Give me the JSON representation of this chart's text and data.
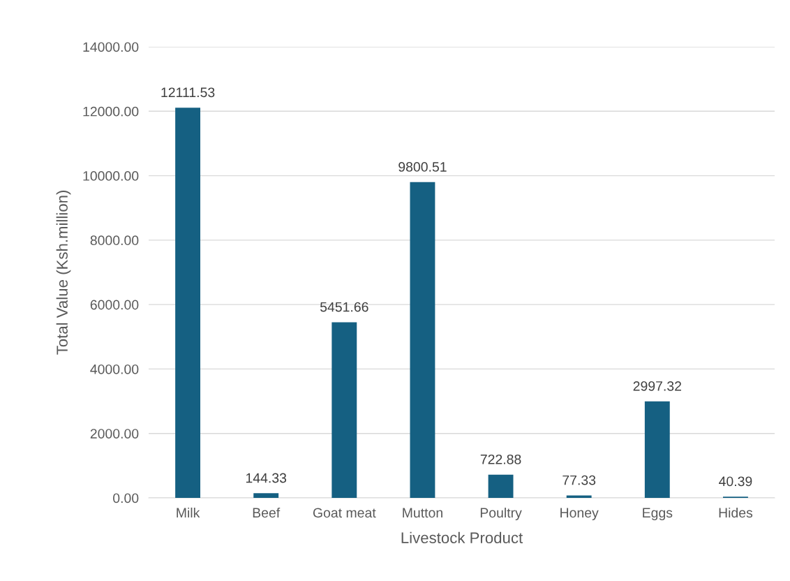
{
  "chart_data": {
    "type": "bar",
    "xlabel": "Livestock Product",
    "ylabel": "Total Value (Ksh.million)",
    "categories": [
      "Milk",
      "Beef",
      "Goat meat",
      "Mutton",
      "Poultry",
      "Honey",
      "Eggs",
      "Hides"
    ],
    "values": [
      12111.53,
      144.33,
      5451.66,
      9800.51,
      722.88,
      77.33,
      2997.32,
      40.39
    ],
    "color": "#156082",
    "data_labels": true,
    "grid": "y",
    "legend": false,
    "ylim": [
      0,
      14000
    ],
    "yticks": [
      {
        "value": 0,
        "label": "0.00"
      },
      {
        "value": 2000,
        "label": "2000.00"
      },
      {
        "value": 4000,
        "label": "4000.00"
      },
      {
        "value": 6000,
        "label": "6000.00"
      },
      {
        "value": 8000,
        "label": "8000.00"
      },
      {
        "value": 10000,
        "label": "10000.00"
      },
      {
        "value": 12000,
        "label": "12000.00"
      },
      {
        "value": 14000,
        "label": "14000.00"
      }
    ]
  }
}
